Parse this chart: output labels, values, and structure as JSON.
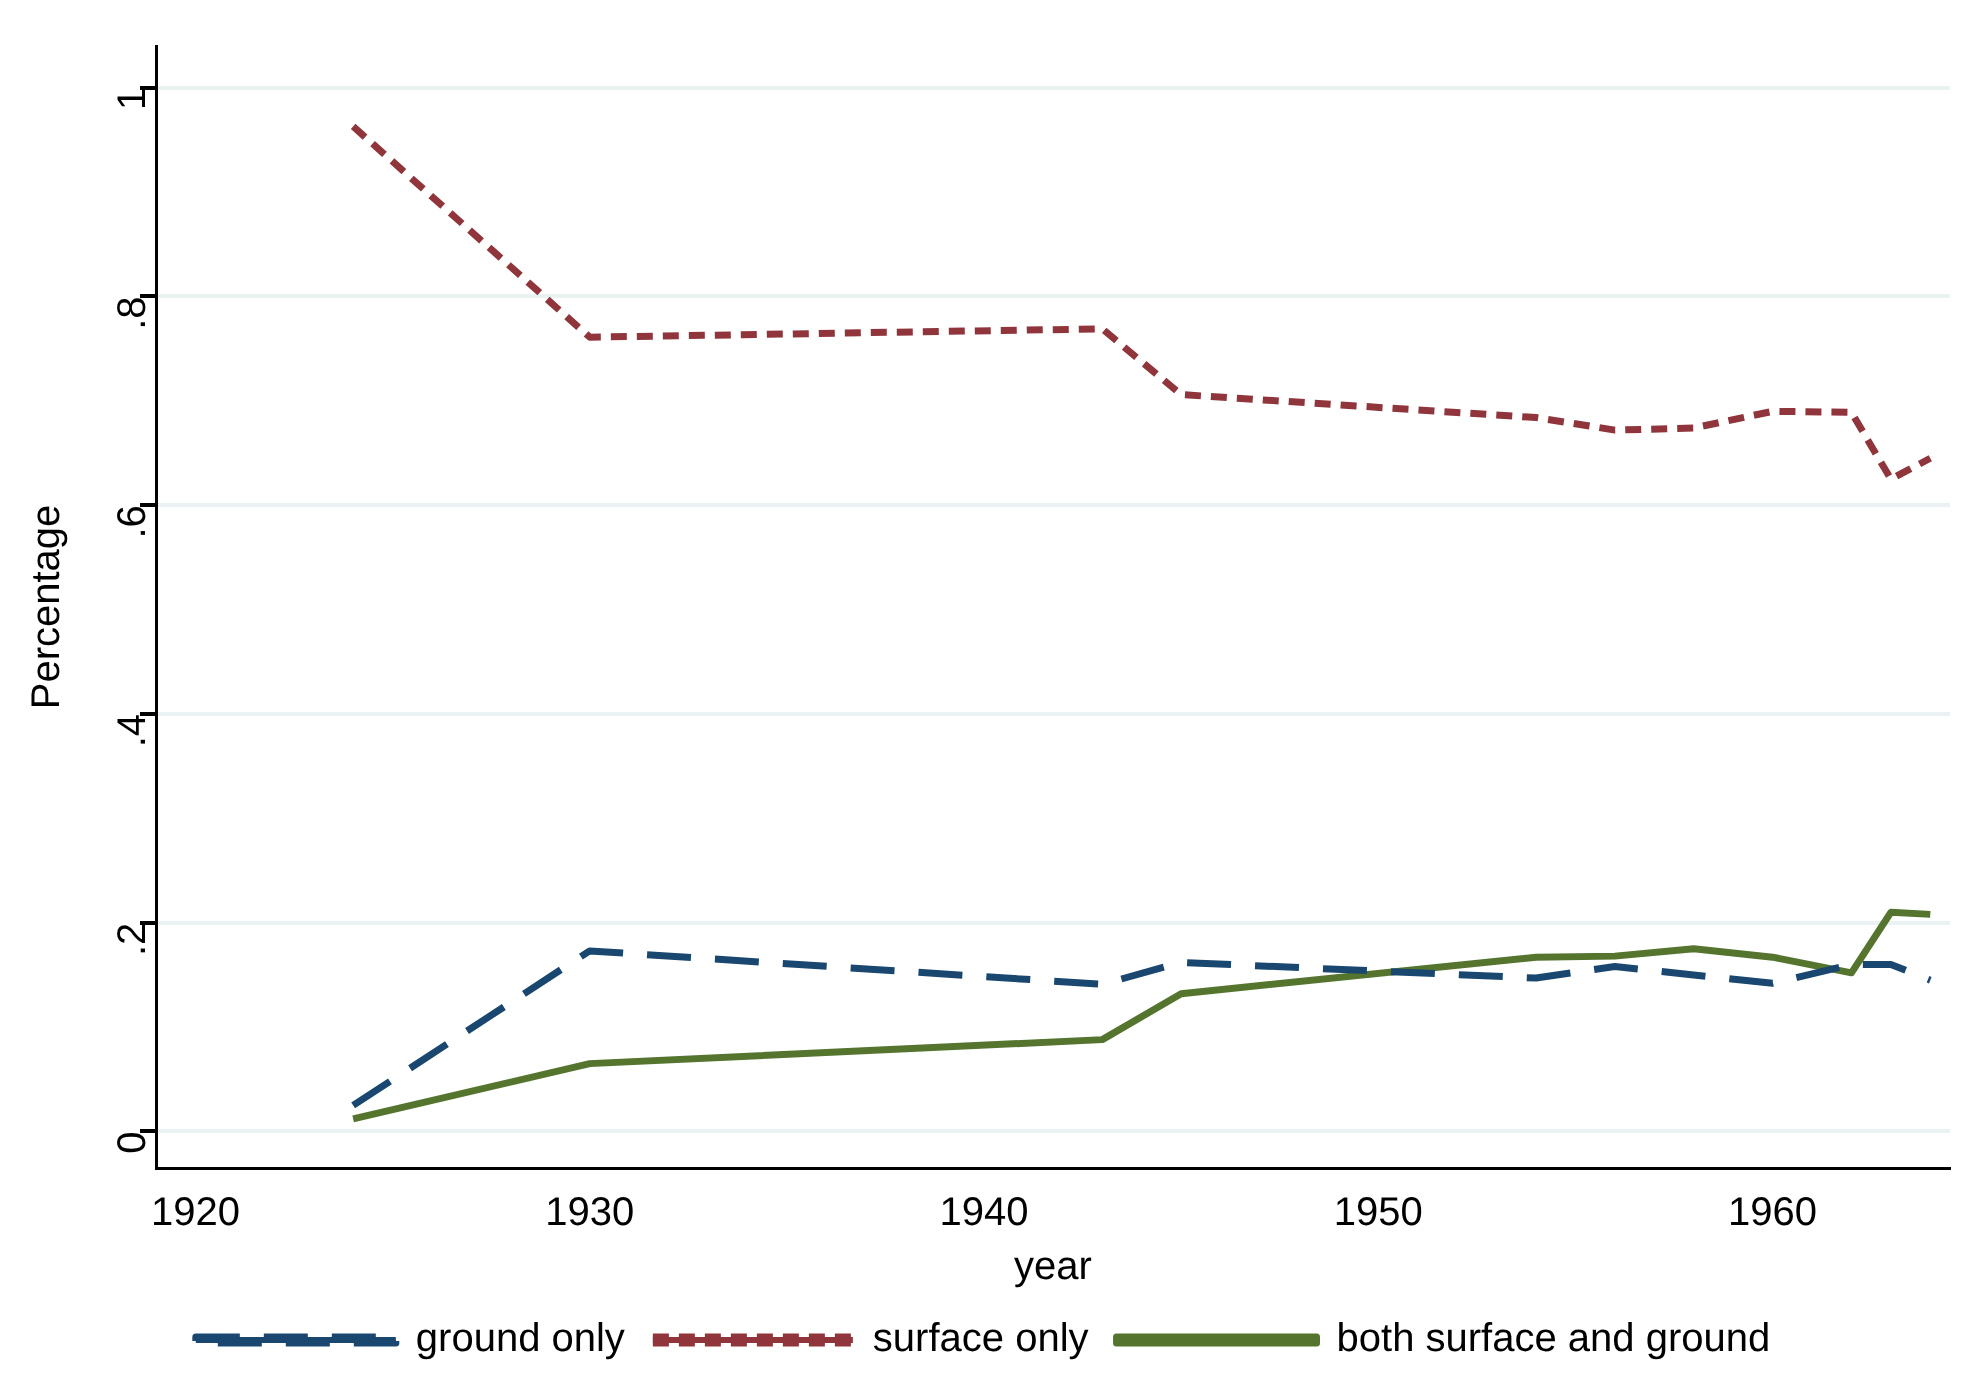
{
  "chart_data": {
    "type": "line",
    "xlabel": "year",
    "ylabel": "Percentage",
    "x": [
      1924,
      1930,
      1943,
      1945,
      1954,
      1956,
      1958,
      1960,
      1962,
      1963,
      1964
    ],
    "xlim": [
      1919,
      1964.5
    ],
    "xticks": [
      1920,
      1930,
      1940,
      1950,
      1960
    ],
    "ylim": [
      -0.035,
      1.04
    ],
    "yticks": [
      {
        "value": 0,
        "label": "0"
      },
      {
        "value": 0.2,
        "label": ".2"
      },
      {
        "value": 0.4,
        "label": ".4"
      },
      {
        "value": 0.6,
        "label": ".6"
      },
      {
        "value": 0.8,
        "label": ".8"
      },
      {
        "value": 1,
        "label": "1"
      }
    ],
    "grid": "y",
    "legend": "bottom",
    "marker": "none",
    "series": [
      {
        "name": "ground only",
        "color": "#1a476f",
        "line_style": "dashed",
        "values": [
          0.025,
          0.173,
          0.141,
          0.162,
          0.147,
          0.158,
          0.15,
          0.142,
          0.16,
          0.16,
          0.145
        ]
      },
      {
        "name": "surface only",
        "color": "#90353b",
        "line_style": "dotted",
        "values": [
          0.963,
          0.761,
          0.769,
          0.706,
          0.684,
          0.672,
          0.674,
          0.69,
          0.689,
          0.625,
          0.645
        ]
      },
      {
        "name": "both surface and ground",
        "color": "#55752f",
        "line_style": "solid",
        "values": [
          0.012,
          0.065,
          0.088,
          0.132,
          0.167,
          0.168,
          0.175,
          0.167,
          0.152,
          0.21,
          0.208
        ]
      }
    ]
  }
}
